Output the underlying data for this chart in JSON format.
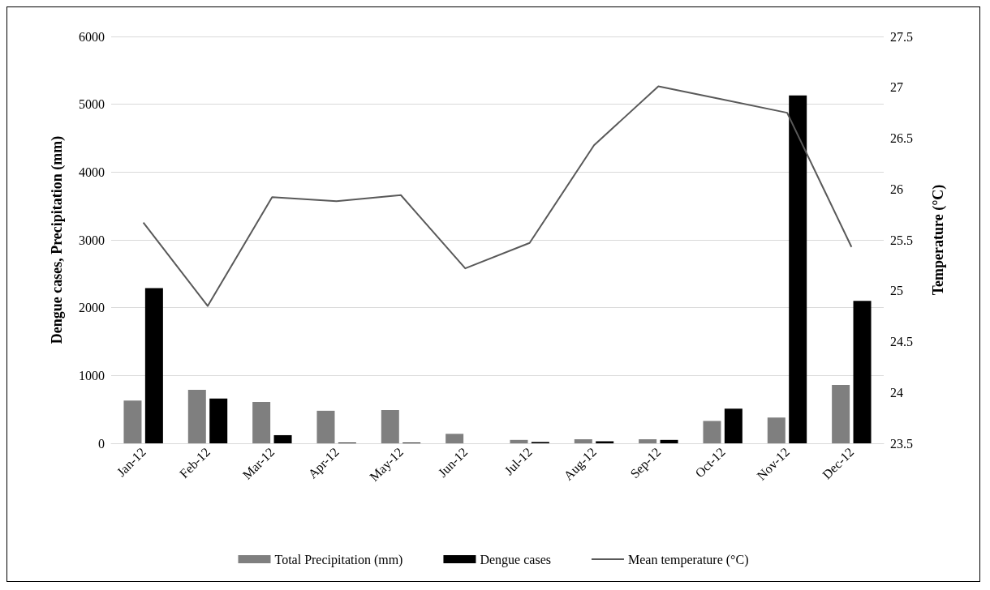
{
  "chart_data": {
    "type": "bar",
    "categories": [
      "Jan-12",
      "Feb-12",
      "Mar-12",
      "Apr-12",
      "May-12",
      "Jun-12",
      "Jul-12",
      "Aug-12",
      "Sep-12",
      "Oct-12",
      "Nov-12",
      "Dec-12"
    ],
    "series": [
      {
        "name": "Total Precipitation (mm)",
        "color": "#7f7f7f",
        "values": [
          630,
          790,
          610,
          480,
          490,
          140,
          50,
          60,
          60,
          330,
          380,
          860
        ]
      },
      {
        "name": "Dengue cases",
        "color": "#000000",
        "values": [
          2290,
          660,
          120,
          10,
          10,
          0,
          20,
          30,
          50,
          510,
          5130,
          2100
        ]
      },
      {
        "name": "Mean temperature (°C)",
        "type": "line",
        "axis": "y2",
        "color": "#595959",
        "values": [
          25.67,
          24.85,
          25.92,
          25.88,
          25.94,
          25.22,
          25.47,
          26.43,
          27.01,
          26.88,
          26.75,
          25.43
        ]
      }
    ],
    "ylabel": "Dengue cases, Precipitation (mm)",
    "y2label": "Temperature (°C)",
    "ylim": [
      0,
      6000
    ],
    "yticks": [
      0,
      1000,
      2000,
      3000,
      4000,
      5000,
      6000
    ],
    "y2lim": [
      23.5,
      27.5
    ],
    "y2ticks": [
      23.5,
      24,
      24.5,
      25,
      25.5,
      26,
      26.5,
      27,
      27.5
    ],
    "grid": "y",
    "legend": "bottom",
    "marker": "none",
    "line_style": "solid"
  }
}
